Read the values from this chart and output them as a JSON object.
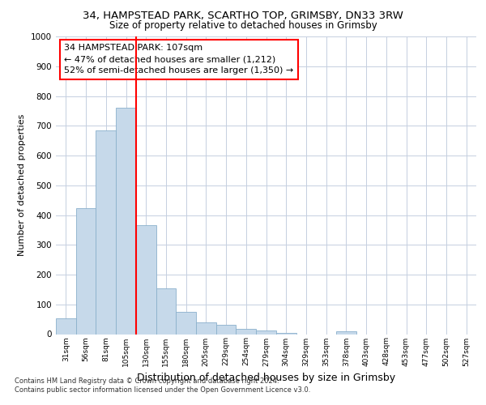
{
  "title1": "34, HAMPSTEAD PARK, SCARTHO TOP, GRIMSBY, DN33 3RW",
  "title2": "Size of property relative to detached houses in Grimsby",
  "xlabel": "Distribution of detached houses by size in Grimsby",
  "ylabel": "Number of detached properties",
  "bar_labels": [
    "31sqm",
    "56sqm",
    "81sqm",
    "105sqm",
    "130sqm",
    "155sqm",
    "180sqm",
    "205sqm",
    "229sqm",
    "254sqm",
    "279sqm",
    "304sqm",
    "329sqm",
    "353sqm",
    "378sqm",
    "403sqm",
    "428sqm",
    "453sqm",
    "477sqm",
    "502sqm",
    "527sqm"
  ],
  "bar_values": [
    52,
    422,
    685,
    760,
    365,
    153,
    75,
    40,
    30,
    17,
    12,
    5,
    0,
    0,
    10,
    0,
    0,
    0,
    0,
    0,
    0
  ],
  "bar_color": "#c6d9ea",
  "bar_edgecolor": "#8ab0cc",
  "vline_x": 3.5,
  "vline_color": "red",
  "annotation_text": "34 HAMPSTEAD PARK: 107sqm\n← 47% of detached houses are smaller (1,212)\n52% of semi-detached houses are larger (1,350) →",
  "annotation_box_edgecolor": "red",
  "annotation_fontsize": 8,
  "ylim": [
    0,
    1000
  ],
  "yticks": [
    0,
    100,
    200,
    300,
    400,
    500,
    600,
    700,
    800,
    900,
    1000
  ],
  "grid_color": "#c5cfe0",
  "footnote1": "Contains HM Land Registry data © Crown copyright and database right 2024.",
  "footnote2": "Contains public sector information licensed under the Open Government Licence v3.0.",
  "bg_color": "#ffffff",
  "title1_fontsize": 9.5,
  "title2_fontsize": 8.5,
  "ylabel_fontsize": 8,
  "xlabel_fontsize": 9
}
